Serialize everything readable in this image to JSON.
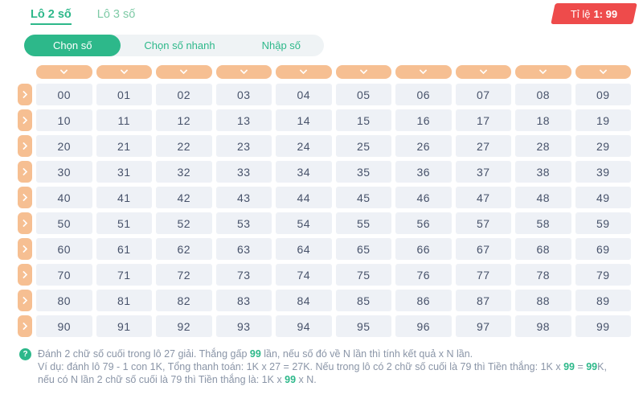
{
  "colors": {
    "green": "#2db88a",
    "green_light": "#7ecaa6",
    "orange": "#f6bf92",
    "red": "#ee4b4b",
    "cell_bg": "#eef1f6",
    "cell_text": "#47526a",
    "muted": "#8a95a7",
    "group_bg": "#eff3f5"
  },
  "tabs": [
    {
      "name": "tab-lo-2-so",
      "label": "Lô 2 số",
      "active": true
    },
    {
      "name": "tab-lo-3-so",
      "label": "Lô 3 số",
      "active": false
    }
  ],
  "ratio_badge": {
    "prefix": "Tỉ lệ",
    "value": "1: 99"
  },
  "modes": [
    {
      "name": "mode-chon-so",
      "label": "Chọn số",
      "active": true
    },
    {
      "name": "mode-chon-so-nhanh",
      "label": "Chọn số nhanh",
      "active": false
    },
    {
      "name": "mode-nhap-so",
      "label": "Nhập số",
      "active": false
    }
  ],
  "grid": {
    "column_count": 10,
    "rows": [
      [
        "00",
        "01",
        "02",
        "03",
        "04",
        "05",
        "06",
        "07",
        "08",
        "09"
      ],
      [
        "10",
        "11",
        "12",
        "13",
        "14",
        "15",
        "16",
        "17",
        "18",
        "19"
      ],
      [
        "20",
        "21",
        "22",
        "23",
        "24",
        "25",
        "26",
        "27",
        "28",
        "29"
      ],
      [
        "30",
        "31",
        "32",
        "33",
        "34",
        "35",
        "36",
        "37",
        "38",
        "39"
      ],
      [
        "40",
        "41",
        "42",
        "43",
        "44",
        "45",
        "46",
        "47",
        "48",
        "49"
      ],
      [
        "50",
        "51",
        "52",
        "53",
        "54",
        "55",
        "56",
        "57",
        "58",
        "59"
      ],
      [
        "60",
        "61",
        "62",
        "63",
        "64",
        "65",
        "66",
        "67",
        "68",
        "69"
      ],
      [
        "70",
        "71",
        "72",
        "73",
        "74",
        "75",
        "76",
        "77",
        "78",
        "79"
      ],
      [
        "80",
        "81",
        "82",
        "83",
        "84",
        "85",
        "86",
        "87",
        "88",
        "89"
      ],
      [
        "90",
        "91",
        "92",
        "93",
        "94",
        "95",
        "96",
        "97",
        "98",
        "99"
      ]
    ]
  },
  "footer": {
    "icon": "question-icon",
    "icon_glyph": "?",
    "paragraphs": [
      [
        {
          "t": "Đánh 2 chữ số cuối trong lô 27 giải. Thắng gấp "
        },
        {
          "t": "99",
          "hl": true
        },
        {
          "t": " lần, nếu số đó về N lần thì tính kết quả x N lần."
        }
      ],
      [
        {
          "t": "Ví dụ: đánh lô 79 - 1 con 1K, Tổng thanh toán: 1K x 27 = 27K. Nếu trong lô có 2 chữ số cuối là 79 thì Tiền thắng: 1K x "
        },
        {
          "t": "99",
          "hl": true
        },
        {
          "t": " = "
        },
        {
          "t": "99",
          "hl": true
        },
        {
          "t": "K, nếu có N lần 2 chữ số cuối là 79 thì Tiền thắng là: 1K x "
        },
        {
          "t": "99",
          "hl": true
        },
        {
          "t": " x N."
        }
      ]
    ]
  }
}
